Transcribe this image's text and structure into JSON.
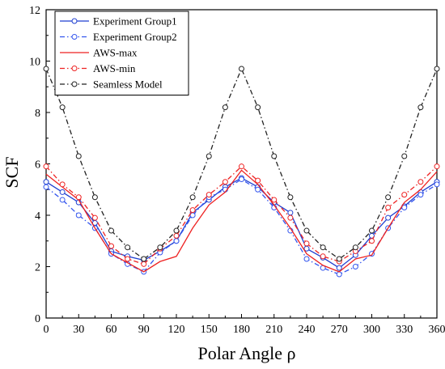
{
  "chart_data": {
    "type": "line",
    "xlabel": "Polar Angle ρ",
    "ylabel": "SCF",
    "xlim": [
      0,
      360
    ],
    "ylim": [
      0,
      12
    ],
    "xticks": [
      0,
      30,
      60,
      90,
      120,
      150,
      180,
      210,
      240,
      270,
      300,
      330,
      360
    ],
    "yticks": [
      0,
      2,
      4,
      6,
      8,
      10,
      12
    ],
    "grid": false,
    "legend_position": "top-left",
    "x": [
      0,
      15,
      30,
      45,
      60,
      75,
      90,
      105,
      120,
      135,
      150,
      165,
      180,
      195,
      210,
      225,
      240,
      255,
      270,
      285,
      300,
      315,
      330,
      345,
      360
    ],
    "series": [
      {
        "name": "Experiment Group1",
        "color": "#1f3fd0",
        "dash": "solid",
        "marker": "circle",
        "values": [
          5.3,
          4.9,
          4.5,
          3.7,
          2.6,
          2.4,
          2.25,
          2.6,
          3.0,
          4.1,
          4.6,
          5.1,
          5.45,
          5.1,
          4.5,
          4.1,
          2.7,
          2.35,
          1.95,
          2.45,
          3.2,
          3.9,
          4.35,
          4.9,
          5.3
        ]
      },
      {
        "name": "Experiment Group2",
        "color": "#3355ee",
        "dash": "dashdot",
        "marker": "circle",
        "values": [
          5.1,
          4.6,
          4.0,
          3.5,
          2.5,
          2.1,
          1.8,
          2.55,
          3.0,
          4.0,
          4.7,
          5.0,
          5.4,
          5.0,
          4.3,
          3.4,
          2.3,
          1.95,
          1.7,
          2.0,
          2.5,
          3.5,
          4.3,
          4.8,
          5.2
        ]
      },
      {
        "name": "AWS-max",
        "color": "#ee2222",
        "dash": "solid",
        "marker": "none",
        "values": [
          5.6,
          5.1,
          4.6,
          3.5,
          2.5,
          2.15,
          1.8,
          2.2,
          2.4,
          3.5,
          4.4,
          4.9,
          5.75,
          5.2,
          4.4,
          3.5,
          2.5,
          2.05,
          1.8,
          2.3,
          2.45,
          3.5,
          4.5,
          5.0,
          5.7
        ]
      },
      {
        "name": "AWS-min",
        "color": "#ee2222",
        "dash": "dashdot",
        "marker": "circle",
        "values": [
          5.9,
          5.2,
          4.7,
          3.9,
          2.8,
          2.3,
          2.1,
          2.7,
          3.2,
          4.2,
          4.8,
          5.3,
          5.9,
          5.35,
          4.6,
          3.9,
          2.9,
          2.4,
          2.2,
          2.6,
          3.0,
          4.3,
          4.8,
          5.3,
          5.9
        ]
      },
      {
        "name": "Seamless Model",
        "color": "#222222",
        "dash": "dashdot",
        "marker": "circle",
        "values": [
          9.7,
          8.2,
          6.3,
          4.7,
          3.4,
          2.75,
          2.3,
          2.75,
          3.4,
          4.7,
          6.3,
          8.2,
          9.7,
          8.2,
          6.3,
          4.7,
          3.4,
          2.75,
          2.3,
          2.75,
          3.4,
          4.7,
          6.3,
          8.2,
          9.7
        ]
      }
    ]
  }
}
